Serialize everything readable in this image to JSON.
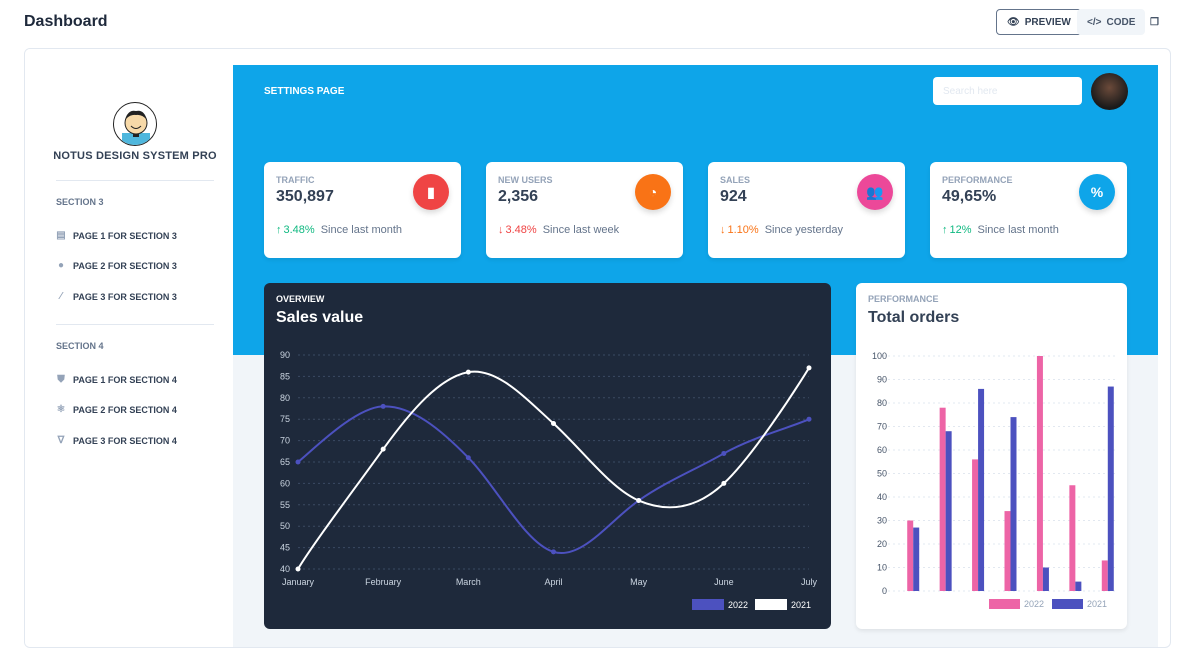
{
  "header": {
    "title": "Dashboard",
    "preview": "PREVIEW",
    "code": "CODE"
  },
  "sidebar": {
    "brand": "NOTUS DESIGN SYSTEM PRO",
    "sections": [
      {
        "title": "SECTION 3",
        "items": [
          {
            "label": "PAGE 1 FOR SECTION 3",
            "icon": "tv-icon"
          },
          {
            "label": "PAGE 2 FOR SECTION 3",
            "icon": "user-circle-icon"
          },
          {
            "label": "PAGE 3 FOR SECTION 3",
            "icon": "paint-brush-icon"
          }
        ]
      },
      {
        "title": "SECTION 4",
        "items": [
          {
            "label": "PAGE 1 FOR SECTION 4",
            "icon": "user-shield-icon"
          },
          {
            "label": "PAGE 2 FOR SECTION 4",
            "icon": "atom-icon"
          },
          {
            "label": "PAGE 3 FOR SECTION 4",
            "icon": "vuejs-icon"
          }
        ]
      }
    ]
  },
  "main": {
    "title": "SETTINGS PAGE",
    "search_placeholder": "Search here"
  },
  "stats": [
    {
      "label": "TRAFFIC",
      "value": "350,897",
      "change": "3.48%",
      "dir": "up",
      "since": "Since last month",
      "color": "#ef4444",
      "icon": "chart-bar-icon",
      "chcolor": "#10b981"
    },
    {
      "label": "NEW USERS",
      "value": "2,356",
      "change": "3.48%",
      "dir": "down",
      "since": "Since last week",
      "color": "#f97316",
      "icon": "chart-pie-icon",
      "chcolor": "#ef4444"
    },
    {
      "label": "SALES",
      "value": "924",
      "change": "1.10%",
      "dir": "down",
      "since": "Since yesterday",
      "color": "#ec4899",
      "icon": "users-icon",
      "chcolor": "#f97316"
    },
    {
      "label": "PERFORMANCE",
      "value": "49,65%",
      "change": "12%",
      "dir": "up",
      "since": "Since last month",
      "color": "#0ea5e9",
      "icon": "percent-icon",
      "chcolor": "#10b981"
    }
  ],
  "chart_data": [
    {
      "type": "line",
      "overline": "OVERVIEW",
      "title": "Sales value",
      "categories": [
        "January",
        "February",
        "March",
        "April",
        "May",
        "June",
        "July"
      ],
      "series": [
        {
          "name": "2022",
          "values": [
            65,
            78,
            66,
            44,
            56,
            67,
            75
          ],
          "color": "#4c51bf"
        },
        {
          "name": "2021",
          "values": [
            40,
            68,
            86,
            74,
            56,
            60,
            87
          ],
          "color": "#ffffff"
        }
      ],
      "ylim": [
        40,
        90
      ],
      "yticks": [
        40,
        45,
        50,
        55,
        60,
        65,
        70,
        75,
        80,
        85,
        90
      ],
      "grid": true,
      "legend": "bottom-right"
    },
    {
      "type": "bar",
      "overline": "PERFORMANCE",
      "title": "Total orders",
      "categories": [
        "",
        "",
        "",
        "",
        "",
        "",
        ""
      ],
      "series": [
        {
          "name": "2022",
          "values": [
            30,
            78,
            56,
            34,
            100,
            45,
            13
          ],
          "color": "#ed64a6"
        },
        {
          "name": "2021",
          "values": [
            27,
            68,
            86,
            74,
            10,
            4,
            87
          ],
          "color": "#4c51bf"
        }
      ],
      "ylim": [
        0,
        100
      ],
      "yticks": [
        0,
        10,
        20,
        30,
        40,
        50,
        60,
        70,
        80,
        90,
        100
      ],
      "grid": true,
      "legend": "bottom-right"
    }
  ]
}
